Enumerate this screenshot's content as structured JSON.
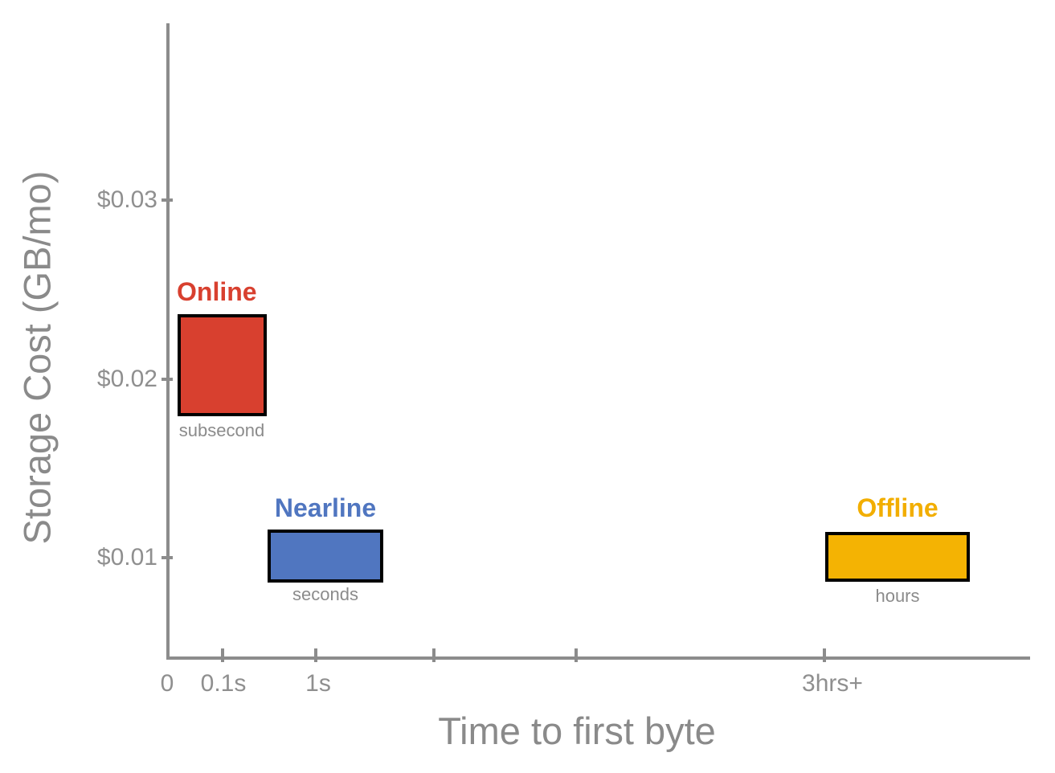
{
  "colors": {
    "axis_gray": "#8c8c8c",
    "label_gray": "#8a8a8a",
    "online_red": "#d8402f",
    "nearline_blue": "#5076c0",
    "offline_yellow": "#f4b303",
    "box_border": "#000000",
    "background": "#ffffff"
  },
  "chart_data": {
    "type": "bar",
    "subtype": "floating-range-boxes",
    "title": "",
    "xlabel": "Time to first byte",
    "ylabel": "Storage Cost (GB/mo)",
    "x_axis": {
      "tick_labels": [
        "0",
        "0.1s",
        "1s",
        "3hrs+"
      ],
      "unlabeled_tick_count": 2,
      "scale": "log-like"
    },
    "y_axis": {
      "tick_labels": [
        "$0.01",
        "$0.02",
        "$0.03"
      ],
      "tick_values": [
        0.01,
        0.02,
        0.03
      ],
      "ylim": [
        0.004,
        0.039
      ],
      "grid": false
    },
    "legend": "none",
    "series": [
      {
        "name": "Online",
        "latency_label": "subsecond",
        "color": "#d8402f",
        "cost_range_gb_mo_est": [
          0.018,
          0.0235
        ],
        "time_range_est": "0 to ~0.5s"
      },
      {
        "name": "Nearline",
        "latency_label": "seconds",
        "color": "#5076c0",
        "cost_range_gb_mo_est": [
          0.0085,
          0.0115
        ],
        "time_range_est": "~0.5s to ~2s"
      },
      {
        "name": "Offline",
        "latency_label": "hours",
        "color": "#f4b303",
        "cost_range_gb_mo_est": [
          0.0085,
          0.0115
        ],
        "time_range_est": "3hrs+"
      }
    ]
  }
}
